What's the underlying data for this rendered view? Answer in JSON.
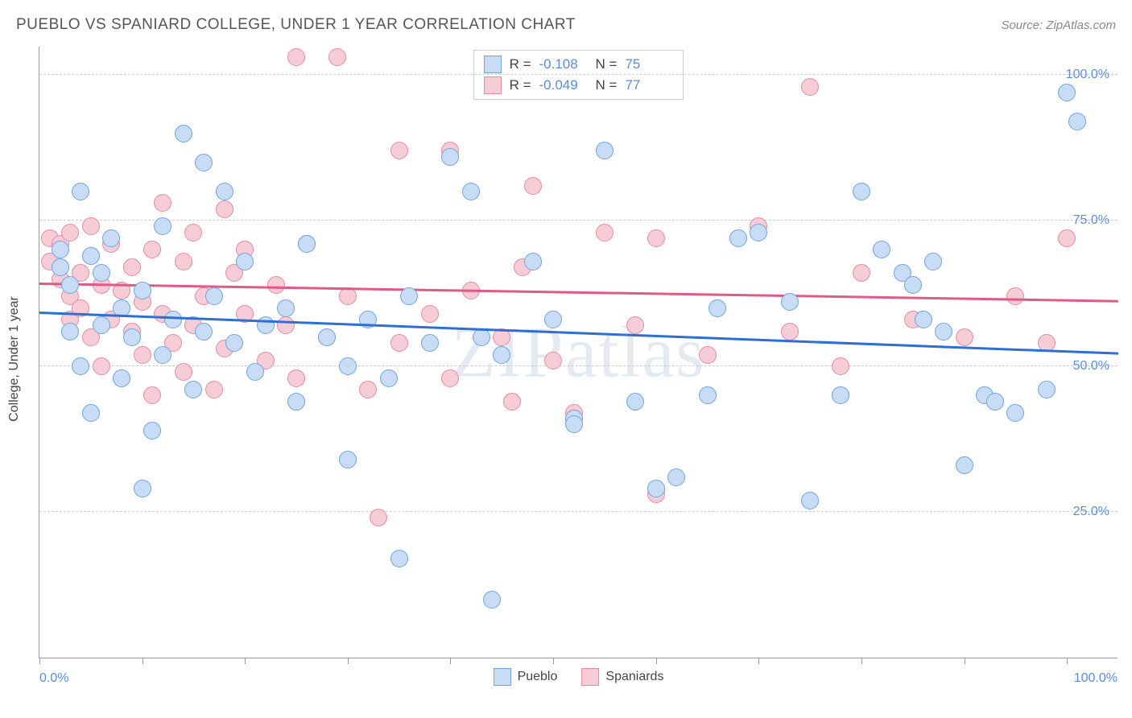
{
  "title": "PUEBLO VS SPANIARD COLLEGE, UNDER 1 YEAR CORRELATION CHART",
  "source": "Source: ZipAtlas.com",
  "watermark": "ZIPatlas",
  "yaxis_title": "College, Under 1 year",
  "xaxis": {
    "min_label": "0.0%",
    "max_label": "100.0%"
  },
  "chart": {
    "type": "scatter",
    "xlim": [
      0,
      105
    ],
    "ylim": [
      0,
      105
    ],
    "ytick_labels": [
      "25.0%",
      "50.0%",
      "75.0%",
      "100.0%"
    ],
    "ytick_values": [
      25,
      50,
      75,
      100
    ],
    "xtick_positions": [
      0,
      10,
      20,
      30,
      40,
      50,
      60,
      70,
      80,
      90,
      100
    ],
    "grid_color": "#cccccc",
    "background": "#ffffff",
    "marker_radius": 11,
    "marker_stroke_width": 1.5,
    "axis_label_color": "#5b8dd6",
    "axis_label_fontsize": 16
  },
  "series": {
    "pueblo": {
      "label": "Pueblo",
      "fill": "#c8ddf5",
      "stroke": "#6fa3e0",
      "trend_color": "#2e6fd6",
      "R": "-0.108",
      "N": "75",
      "trend": {
        "x1": 0,
        "y1": 59,
        "x2": 105,
        "y2": 52
      },
      "points": [
        [
          2,
          70
        ],
        [
          2,
          67
        ],
        [
          3,
          64
        ],
        [
          3,
          56
        ],
        [
          4,
          80
        ],
        [
          4,
          50
        ],
        [
          5,
          42
        ],
        [
          5,
          69
        ],
        [
          6,
          57
        ],
        [
          6,
          66
        ],
        [
          7,
          72
        ],
        [
          8,
          60
        ],
        [
          8,
          48
        ],
        [
          9,
          55
        ],
        [
          10,
          63
        ],
        [
          10,
          29
        ],
        [
          11,
          39
        ],
        [
          12,
          74
        ],
        [
          12,
          52
        ],
        [
          13,
          58
        ],
        [
          14,
          90
        ],
        [
          15,
          46
        ],
        [
          16,
          85
        ],
        [
          16,
          56
        ],
        [
          17,
          62
        ],
        [
          18,
          80
        ],
        [
          19,
          54
        ],
        [
          20,
          68
        ],
        [
          21,
          49
        ],
        [
          22,
          57
        ],
        [
          24,
          60
        ],
        [
          25,
          44
        ],
        [
          26,
          71
        ],
        [
          28,
          55
        ],
        [
          30,
          50
        ],
        [
          30,
          34
        ],
        [
          32,
          58
        ],
        [
          34,
          48
        ],
        [
          35,
          17
        ],
        [
          36,
          62
        ],
        [
          38,
          54
        ],
        [
          40,
          86
        ],
        [
          42,
          80
        ],
        [
          43,
          55
        ],
        [
          44,
          10
        ],
        [
          45,
          52
        ],
        [
          48,
          68
        ],
        [
          50,
          58
        ],
        [
          52,
          41
        ],
        [
          52,
          40
        ],
        [
          55,
          87
        ],
        [
          58,
          44
        ],
        [
          60,
          29
        ],
        [
          62,
          31
        ],
        [
          65,
          45
        ],
        [
          66,
          60
        ],
        [
          68,
          72
        ],
        [
          70,
          73
        ],
        [
          73,
          61
        ],
        [
          75,
          27
        ],
        [
          78,
          45
        ],
        [
          80,
          80
        ],
        [
          82,
          70
        ],
        [
          84,
          66
        ],
        [
          85,
          64
        ],
        [
          86,
          58
        ],
        [
          87,
          68
        ],
        [
          88,
          56
        ],
        [
          90,
          33
        ],
        [
          92,
          45
        ],
        [
          93,
          44
        ],
        [
          95,
          42
        ],
        [
          98,
          46
        ],
        [
          100,
          97
        ],
        [
          101,
          92
        ]
      ]
    },
    "spaniards": {
      "label": "Spaniards",
      "fill": "#f6cdd7",
      "stroke": "#e68aa3",
      "trend_color": "#e05a87",
      "R": "-0.049",
      "N": "77",
      "trend": {
        "x1": 0,
        "y1": 64,
        "x2": 105,
        "y2": 61
      },
      "points": [
        [
          1,
          72
        ],
        [
          1,
          68
        ],
        [
          2,
          71
        ],
        [
          2,
          65
        ],
        [
          3,
          73
        ],
        [
          3,
          62
        ],
        [
          3,
          58
        ],
        [
          4,
          66
        ],
        [
          4,
          60
        ],
        [
          5,
          74
        ],
        [
          5,
          55
        ],
        [
          5,
          69
        ],
        [
          6,
          64
        ],
        [
          6,
          50
        ],
        [
          7,
          71
        ],
        [
          7,
          58
        ],
        [
          8,
          63
        ],
        [
          8,
          48
        ],
        [
          9,
          67
        ],
        [
          9,
          56
        ],
        [
          10,
          61
        ],
        [
          10,
          52
        ],
        [
          11,
          70
        ],
        [
          11,
          45
        ],
        [
          12,
          78
        ],
        [
          12,
          59
        ],
        [
          13,
          54
        ],
        [
          14,
          68
        ],
        [
          14,
          49
        ],
        [
          15,
          73
        ],
        [
          15,
          57
        ],
        [
          16,
          62
        ],
        [
          17,
          46
        ],
        [
          18,
          77
        ],
        [
          18,
          53
        ],
        [
          19,
          66
        ],
        [
          20,
          59
        ],
        [
          20,
          70
        ],
        [
          22,
          51
        ],
        [
          23,
          64
        ],
        [
          24,
          57
        ],
        [
          25,
          48
        ],
        [
          25,
          103
        ],
        [
          26,
          71
        ],
        [
          28,
          55
        ],
        [
          29,
          103
        ],
        [
          30,
          62
        ],
        [
          32,
          46
        ],
        [
          33,
          24
        ],
        [
          35,
          54
        ],
        [
          35,
          87
        ],
        [
          38,
          59
        ],
        [
          40,
          48
        ],
        [
          40,
          87
        ],
        [
          42,
          63
        ],
        [
          45,
          55
        ],
        [
          47,
          67
        ],
        [
          48,
          81
        ],
        [
          50,
          51
        ],
        [
          52,
          42
        ],
        [
          52,
          41
        ],
        [
          55,
          73
        ],
        [
          58,
          57
        ],
        [
          60,
          28
        ],
        [
          65,
          52
        ],
        [
          70,
          74
        ],
        [
          73,
          56
        ],
        [
          75,
          98
        ],
        [
          78,
          50
        ],
        [
          80,
          66
        ],
        [
          85,
          58
        ],
        [
          90,
          55
        ],
        [
          95,
          62
        ],
        [
          98,
          54
        ],
        [
          100,
          72
        ],
        [
          60,
          72
        ],
        [
          46,
          44
        ]
      ]
    }
  },
  "stats_labels": {
    "R": "R =",
    "N": "N ="
  }
}
